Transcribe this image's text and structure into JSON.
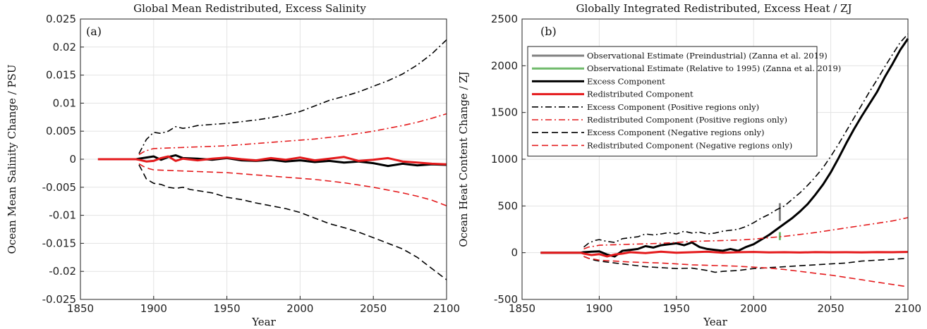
{
  "chart_data": [
    {
      "type": "line",
      "title": "Global Mean Redistributed, Excess Salinity",
      "panel_label": "(a)",
      "xlabel": "Year",
      "ylabel": "Ocean Mean Salinity Change / PSU",
      "xlim": [
        1850,
        2100
      ],
      "ylim": [
        -0.025,
        0.025
      ],
      "xticks": [
        "1850",
        "1900",
        "1950",
        "2000",
        "2050",
        "2100"
      ],
      "yticks": [
        "-0.025",
        "-0.02",
        "-0.015",
        "-0.01",
        "-0.005",
        "0",
        "0.005",
        "0.01",
        "0.015",
        "0.02",
        "0.025"
      ],
      "grid": true,
      "series": [
        {
          "color": "#000000",
          "style": "dashdot",
          "width": 1.6,
          "x": [
            1890,
            1892,
            1895,
            1900,
            1905,
            1910,
            1915,
            1920,
            1925,
            1930,
            1940,
            1950,
            1960,
            1970,
            1980,
            1990,
            2000,
            2010,
            2020,
            2030,
            2040,
            2050,
            2060,
            2070,
            2080,
            2090,
            2100
          ],
          "y": [
            0.001,
            0.002,
            0.0035,
            0.0048,
            0.0046,
            0.005,
            0.0058,
            0.0055,
            0.0057,
            0.006,
            0.0062,
            0.0064,
            0.0067,
            0.007,
            0.0074,
            0.0079,
            0.0085,
            0.0095,
            0.0105,
            0.0112,
            0.012,
            0.013,
            0.014,
            0.0152,
            0.0168,
            0.0188,
            0.0213
          ]
        },
        {
          "color": "#e41a1c",
          "style": "dashdot",
          "width": 1.6,
          "x": [
            1890,
            1893,
            1897,
            1900,
            1910,
            1920,
            1930,
            1940,
            1950,
            1960,
            1970,
            1980,
            1990,
            2000,
            2010,
            2020,
            2030,
            2040,
            2050,
            2060,
            2070,
            2080,
            2090,
            2100
          ],
          "y": [
            0.0008,
            0.0013,
            0.0017,
            0.0019,
            0.002,
            0.0021,
            0.0022,
            0.0023,
            0.0024,
            0.0026,
            0.0028,
            0.003,
            0.0032,
            0.0034,
            0.0036,
            0.0039,
            0.0042,
            0.0046,
            0.005,
            0.0055,
            0.006,
            0.0066,
            0.0073,
            0.0081
          ]
        },
        {
          "color": "#e41a1c",
          "style": "dashed",
          "width": 1.6,
          "x": [
            1890,
            1893,
            1897,
            1900,
            1910,
            1920,
            1930,
            1940,
            1950,
            1960,
            1970,
            1980,
            1990,
            2000,
            2010,
            2020,
            2030,
            2040,
            2050,
            2060,
            2070,
            2080,
            2090,
            2100
          ],
          "y": [
            -0.0008,
            -0.0013,
            -0.0017,
            -0.0019,
            -0.002,
            -0.0021,
            -0.0022,
            -0.0023,
            -0.0024,
            -0.0026,
            -0.0028,
            -0.003,
            -0.0032,
            -0.0034,
            -0.0036,
            -0.0039,
            -0.0042,
            -0.0046,
            -0.005,
            -0.0055,
            -0.006,
            -0.0066,
            -0.0073,
            -0.0083
          ]
        },
        {
          "color": "#000000",
          "style": "dashed",
          "width": 1.6,
          "x": [
            1890,
            1892,
            1895,
            1900,
            1905,
            1910,
            1915,
            1920,
            1925,
            1930,
            1940,
            1950,
            1960,
            1970,
            1980,
            1990,
            2000,
            2010,
            2020,
            2030,
            2040,
            2050,
            2060,
            2070,
            2080,
            2090,
            2100
          ],
          "y": [
            -0.001,
            -0.002,
            -0.0035,
            -0.0043,
            -0.0045,
            -0.005,
            -0.0052,
            -0.005,
            -0.0054,
            -0.0056,
            -0.006,
            -0.0068,
            -0.0072,
            -0.0078,
            -0.0083,
            -0.0088,
            -0.0095,
            -0.0105,
            -0.0115,
            -0.0122,
            -0.013,
            -0.014,
            -0.015,
            -0.016,
            -0.0175,
            -0.0195,
            -0.0215
          ]
        },
        {
          "color": "#000000",
          "style": "solid",
          "width": 3,
          "x": [
            1862,
            1880,
            1888,
            1890,
            1895,
            1900,
            1905,
            1910,
            1915,
            1920,
            1930,
            1940,
            1950,
            1960,
            1970,
            1980,
            1990,
            2000,
            2010,
            2020,
            2030,
            2040,
            2050,
            2060,
            2070,
            2080,
            2090,
            2100
          ],
          "y": [
            0,
            0,
            0,
            0.0001,
            0.0003,
            0.0005,
            -0.0001,
            0.0004,
            0.0007,
            0.0002,
            0.0001,
            -0.0001,
            0.0002,
            -0.0002,
            -0.0003,
            -0.0001,
            -0.0004,
            -0.0002,
            -0.0005,
            -0.0003,
            -0.0006,
            -0.0004,
            -0.0007,
            -0.0012,
            -0.0008,
            -0.0011,
            -0.0009,
            -0.001
          ]
        },
        {
          "color": "#e41a1c",
          "style": "solid",
          "width": 3,
          "x": [
            1862,
            1880,
            1888,
            1890,
            1895,
            1900,
            1905,
            1910,
            1915,
            1920,
            1930,
            1940,
            1950,
            1960,
            1970,
            1980,
            1990,
            2000,
            2010,
            2020,
            2030,
            2040,
            2050,
            2060,
            2070,
            2080,
            2090,
            2100
          ],
          "y": [
            0,
            0,
            0,
            -0.0001,
            -0.0004,
            -0.0003,
            0.0002,
            0.0005,
            -0.0003,
            0.0001,
            -0.0002,
            0.0001,
            0.0003,
            0,
            -0.0002,
            0.0002,
            -0.0001,
            0.0003,
            -0.0002,
            0.0001,
            0.0004,
            -0.0003,
            -0.0001,
            0.0002,
            -0.0004,
            -0.0006,
            -0.0008,
            -0.0009
          ]
        }
      ]
    },
    {
      "type": "line",
      "title": "Globally Integrated Redistributed, Excess Heat / ZJ",
      "panel_label": "(b)",
      "xlabel": "Year",
      "ylabel": "Ocean Heat Content Change / ZJ",
      "xlim": [
        1850,
        2100
      ],
      "ylim": [
        -500,
        2500
      ],
      "xticks": [
        "1850",
        "1900",
        "1950",
        "2000",
        "2050",
        "2100"
      ],
      "yticks": [
        "-500",
        "0",
        "500",
        "1000",
        "1500",
        "2000",
        "2500"
      ],
      "grid": true,
      "legend_position": "top-left",
      "series": [
        {
          "name": "Observational Estimate (Preindustrial) (Zanna et al. 2019)",
          "color": "#808080",
          "style": "solid",
          "width": 3,
          "x": [
            2017,
            2017
          ],
          "y": [
            340,
            530
          ]
        },
        {
          "name": "Observational Estimate (Relative to 1995) (Zanna et al. 2019)",
          "color": "#6fba6a",
          "style": "solid",
          "width": 3,
          "x": [
            2017,
            2017
          ],
          "y": [
            135,
            220
          ]
        },
        {
          "name": "Excess Component",
          "color": "#000000",
          "style": "solid",
          "width": 3,
          "x": [
            1862,
            1880,
            1888,
            1890,
            1895,
            1900,
            1905,
            1910,
            1915,
            1920,
            1925,
            1930,
            1935,
            1940,
            1945,
            1950,
            1955,
            1960,
            1965,
            1970,
            1975,
            1980,
            1985,
            1990,
            1995,
            2000,
            2005,
            2010,
            2015,
            2020,
            2025,
            2030,
            2035,
            2040,
            2045,
            2050,
            2055,
            2060,
            2065,
            2070,
            2075,
            2080,
            2085,
            2090,
            2095,
            2100
          ],
          "y": [
            0,
            0,
            0,
            5,
            10,
            15,
            -20,
            -40,
            20,
            30,
            40,
            70,
            55,
            80,
            90,
            100,
            80,
            110,
            60,
            40,
            30,
            20,
            40,
            20,
            60,
            90,
            140,
            190,
            250,
            310,
            370,
            440,
            520,
            620,
            730,
            860,
            1010,
            1170,
            1320,
            1460,
            1590,
            1720,
            1880,
            2020,
            2170,
            2290
          ]
        },
        {
          "name": "Redistributed Component",
          "color": "#e41a1c",
          "style": "solid",
          "width": 3,
          "x": [
            1862,
            1880,
            1888,
            1890,
            1895,
            1900,
            1905,
            1910,
            1915,
            1920,
            1930,
            1940,
            1950,
            1960,
            1970,
            1980,
            1990,
            2000,
            2010,
            2020,
            2030,
            2040,
            2050,
            2060,
            2070,
            2080,
            2090,
            2100
          ],
          "y": [
            0,
            0,
            0,
            -10,
            -25,
            -15,
            -40,
            -20,
            -10,
            5,
            -5,
            10,
            0,
            5,
            10,
            0,
            5,
            8,
            3,
            5,
            2,
            6,
            4,
            5,
            3,
            6,
            5,
            8
          ]
        },
        {
          "name": "Excess Component (Positive regions only)",
          "color": "#000000",
          "style": "dashdot",
          "width": 1.6,
          "x": [
            1890,
            1893,
            1897,
            1900,
            1905,
            1910,
            1915,
            1920,
            1925,
            1930,
            1935,
            1940,
            1945,
            1950,
            1955,
            1960,
            1965,
            1970,
            1975,
            1980,
            1985,
            1990,
            1995,
            2000,
            2005,
            2010,
            2015,
            2020,
            2025,
            2030,
            2035,
            2040,
            2045,
            2050,
            2055,
            2060,
            2065,
            2070,
            2075,
            2080,
            2085,
            2090,
            2095,
            2100
          ],
          "y": [
            60,
            100,
            130,
            140,
            120,
            110,
            150,
            160,
            170,
            200,
            190,
            200,
            215,
            200,
            230,
            210,
            220,
            200,
            210,
            230,
            240,
            250,
            280,
            320,
            370,
            410,
            460,
            500,
            570,
            640,
            720,
            810,
            910,
            1030,
            1160,
            1300,
            1440,
            1580,
            1720,
            1850,
            1990,
            2120,
            2250,
            2340
          ]
        },
        {
          "name": "Redistributed Component (Positive regions only)",
          "color": "#e41a1c",
          "style": "dashdot",
          "width": 1.6,
          "x": [
            1890,
            1893,
            1897,
            1900,
            1910,
            1920,
            1930,
            1940,
            1950,
            1960,
            1970,
            1980,
            1990,
            2000,
            2010,
            2020,
            2030,
            2040,
            2050,
            2060,
            2070,
            2080,
            2090,
            2100
          ],
          "y": [
            40,
            60,
            70,
            80,
            85,
            90,
            95,
            100,
            110,
            120,
            125,
            130,
            135,
            145,
            160,
            175,
            195,
            215,
            240,
            265,
            290,
            315,
            340,
            375
          ]
        },
        {
          "name": "Excess Component (Negative regions only)",
          "color": "#000000",
          "style": "dashed",
          "width": 1.6,
          "x": [
            1890,
            1893,
            1897,
            1900,
            1910,
            1920,
            1930,
            1940,
            1950,
            1960,
            1970,
            1975,
            1980,
            1990,
            2000,
            2010,
            2020,
            2030,
            2040,
            2050,
            2060,
            2070,
            2080,
            2090,
            2100
          ],
          "y": [
            -40,
            -60,
            -80,
            -90,
            -110,
            -130,
            -150,
            -160,
            -170,
            -165,
            -190,
            -210,
            -200,
            -190,
            -170,
            -160,
            -150,
            -140,
            -130,
            -120,
            -110,
            -90,
            -80,
            -70,
            -60
          ]
        },
        {
          "name": "Redistributed Component (Negative regions only)",
          "color": "#e41a1c",
          "style": "dashed",
          "width": 1.6,
          "x": [
            1890,
            1893,
            1897,
            1900,
            1910,
            1920,
            1930,
            1940,
            1950,
            1960,
            1970,
            1980,
            1990,
            2000,
            2010,
            2020,
            2030,
            2040,
            2050,
            2060,
            2070,
            2080,
            2090,
            2100
          ],
          "y": [
            -40,
            -60,
            -70,
            -80,
            -90,
            -100,
            -105,
            -110,
            -120,
            -130,
            -135,
            -140,
            -145,
            -155,
            -165,
            -180,
            -200,
            -220,
            -240,
            -265,
            -290,
            -315,
            -340,
            -365
          ]
        }
      ]
    }
  ]
}
